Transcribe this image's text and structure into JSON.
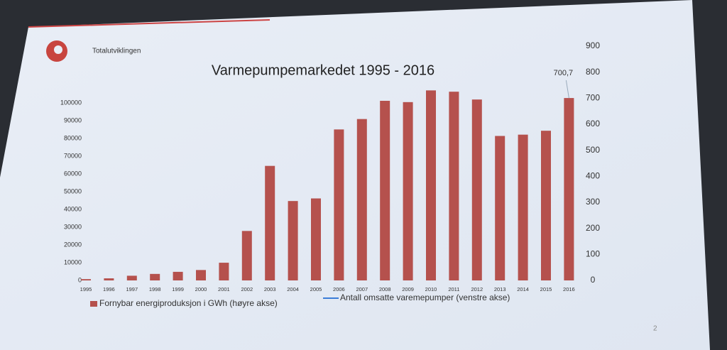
{
  "header": {
    "text": "Totalutviklingen"
  },
  "page_number": "2",
  "chart_data": {
    "type": "bar",
    "title": "Varmepumpemarkedet 1995 - 2016",
    "categories": [
      "1995",
      "1996",
      "1997",
      "1998",
      "1999",
      "2000",
      "2001",
      "2002",
      "2003",
      "2004",
      "2005",
      "2006",
      "2007",
      "2008",
      "2009",
      "2010",
      "2011",
      "2012",
      "2013",
      "2014",
      "2015",
      "2016"
    ],
    "series": [
      {
        "name": "Fornybar energiproduksjon i GWh (høyre akse)",
        "color": "#b5514d",
        "axis": "y2",
        "values": [
          5,
          8,
          18,
          25,
          33,
          40,
          68,
          190,
          440,
          305,
          315,
          580,
          620,
          690,
          685,
          730,
          725,
          695,
          555,
          560,
          575,
          700.7
        ],
        "value_labels": [
          null,
          null,
          null,
          null,
          null,
          null,
          null,
          null,
          null,
          null,
          null,
          null,
          null,
          null,
          null,
          null,
          null,
          null,
          null,
          null,
          null,
          "700,7"
        ]
      },
      {
        "name": "Antall omsatte varemepumper (venstre akse)",
        "color": "#3b7dd8",
        "axis": "y",
        "values": [
          null,
          null,
          null,
          null,
          null,
          null,
          null,
          null,
          null,
          null,
          null,
          null,
          null,
          null,
          null,
          null,
          null,
          null,
          null,
          null,
          null,
          null
        ]
      }
    ],
    "ylim": [
      0,
      100000
    ],
    "yticks": [
      0,
      10000,
      20000,
      30000,
      40000,
      50000,
      60000,
      70000,
      80000,
      90000,
      100000
    ],
    "y2lim": [
      0,
      900
    ],
    "y2ticks": [
      0,
      100,
      200,
      300,
      400,
      500,
      600,
      700,
      800,
      900
    ],
    "legend": "bottom"
  }
}
